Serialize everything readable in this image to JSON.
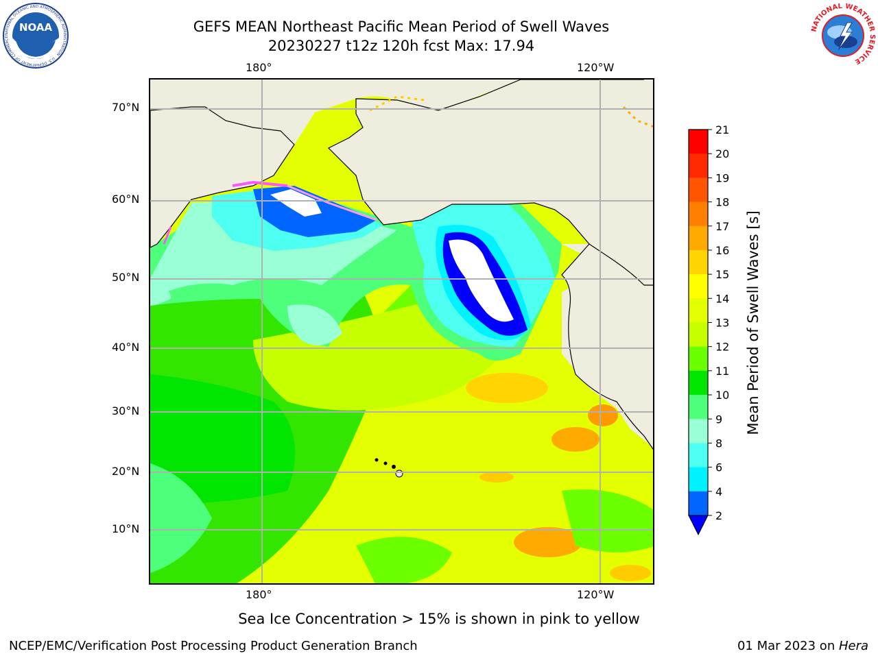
{
  "header": {
    "title_line1": "GEFS MEAN Northeast Pacific Mean Period of Swell Waves",
    "title_line2": "20230227 t12z 120h fcst   Max: 17.94",
    "noaa_logo_text": "NOAA",
    "noaa_ring_text": "NATIONAL OCEANIC AND ATMOSPHERIC ADMINISTRATION · U.S. DEPARTMENT OF COMMERCE",
    "nws_ring_text": "NATIONAL WEATHER SERVICE"
  },
  "map": {
    "lon_labels_top": [
      "180°",
      "120°W"
    ],
    "lon_labels_bottom": [
      "180°",
      "120°W"
    ],
    "lat_labels": [
      "70°N",
      "60°N",
      "50°N",
      "40°N",
      "30°N",
      "20°N",
      "10°N"
    ],
    "colors": {
      "land": "#efeddd",
      "ice_white": "#ffffff",
      "grid": "#b0b0b0"
    }
  },
  "colorbar": {
    "label": "Mean Period of Swell Waves [s]",
    "ticks": [
      "21",
      "20",
      "19",
      "18",
      "17",
      "16",
      "15",
      "14",
      "13",
      "12",
      "11",
      "10",
      "9",
      "8",
      "6",
      "4",
      "2"
    ],
    "colors_top_to_bottom": [
      "#ff0000",
      "#ff2a00",
      "#ff5500",
      "#ff7f00",
      "#ffaa00",
      "#ffd400",
      "#ffff00",
      "#e3ff00",
      "#c6ff00",
      "#6cff00",
      "#00e600",
      "#4dff7a",
      "#99ffd4",
      "#4dfff0",
      "#00f2ff",
      "#0066ff"
    ],
    "extend_color": "#0000ff"
  },
  "footer": {
    "note": "Sea Ice Concentration > 15% is shown in pink to yellow",
    "credit_left": "NCEP/EMC/Verification Post Processing Product Generation Branch",
    "credit_right_date": "01 Mar 2023 on ",
    "credit_right_host": "Hera"
  }
}
